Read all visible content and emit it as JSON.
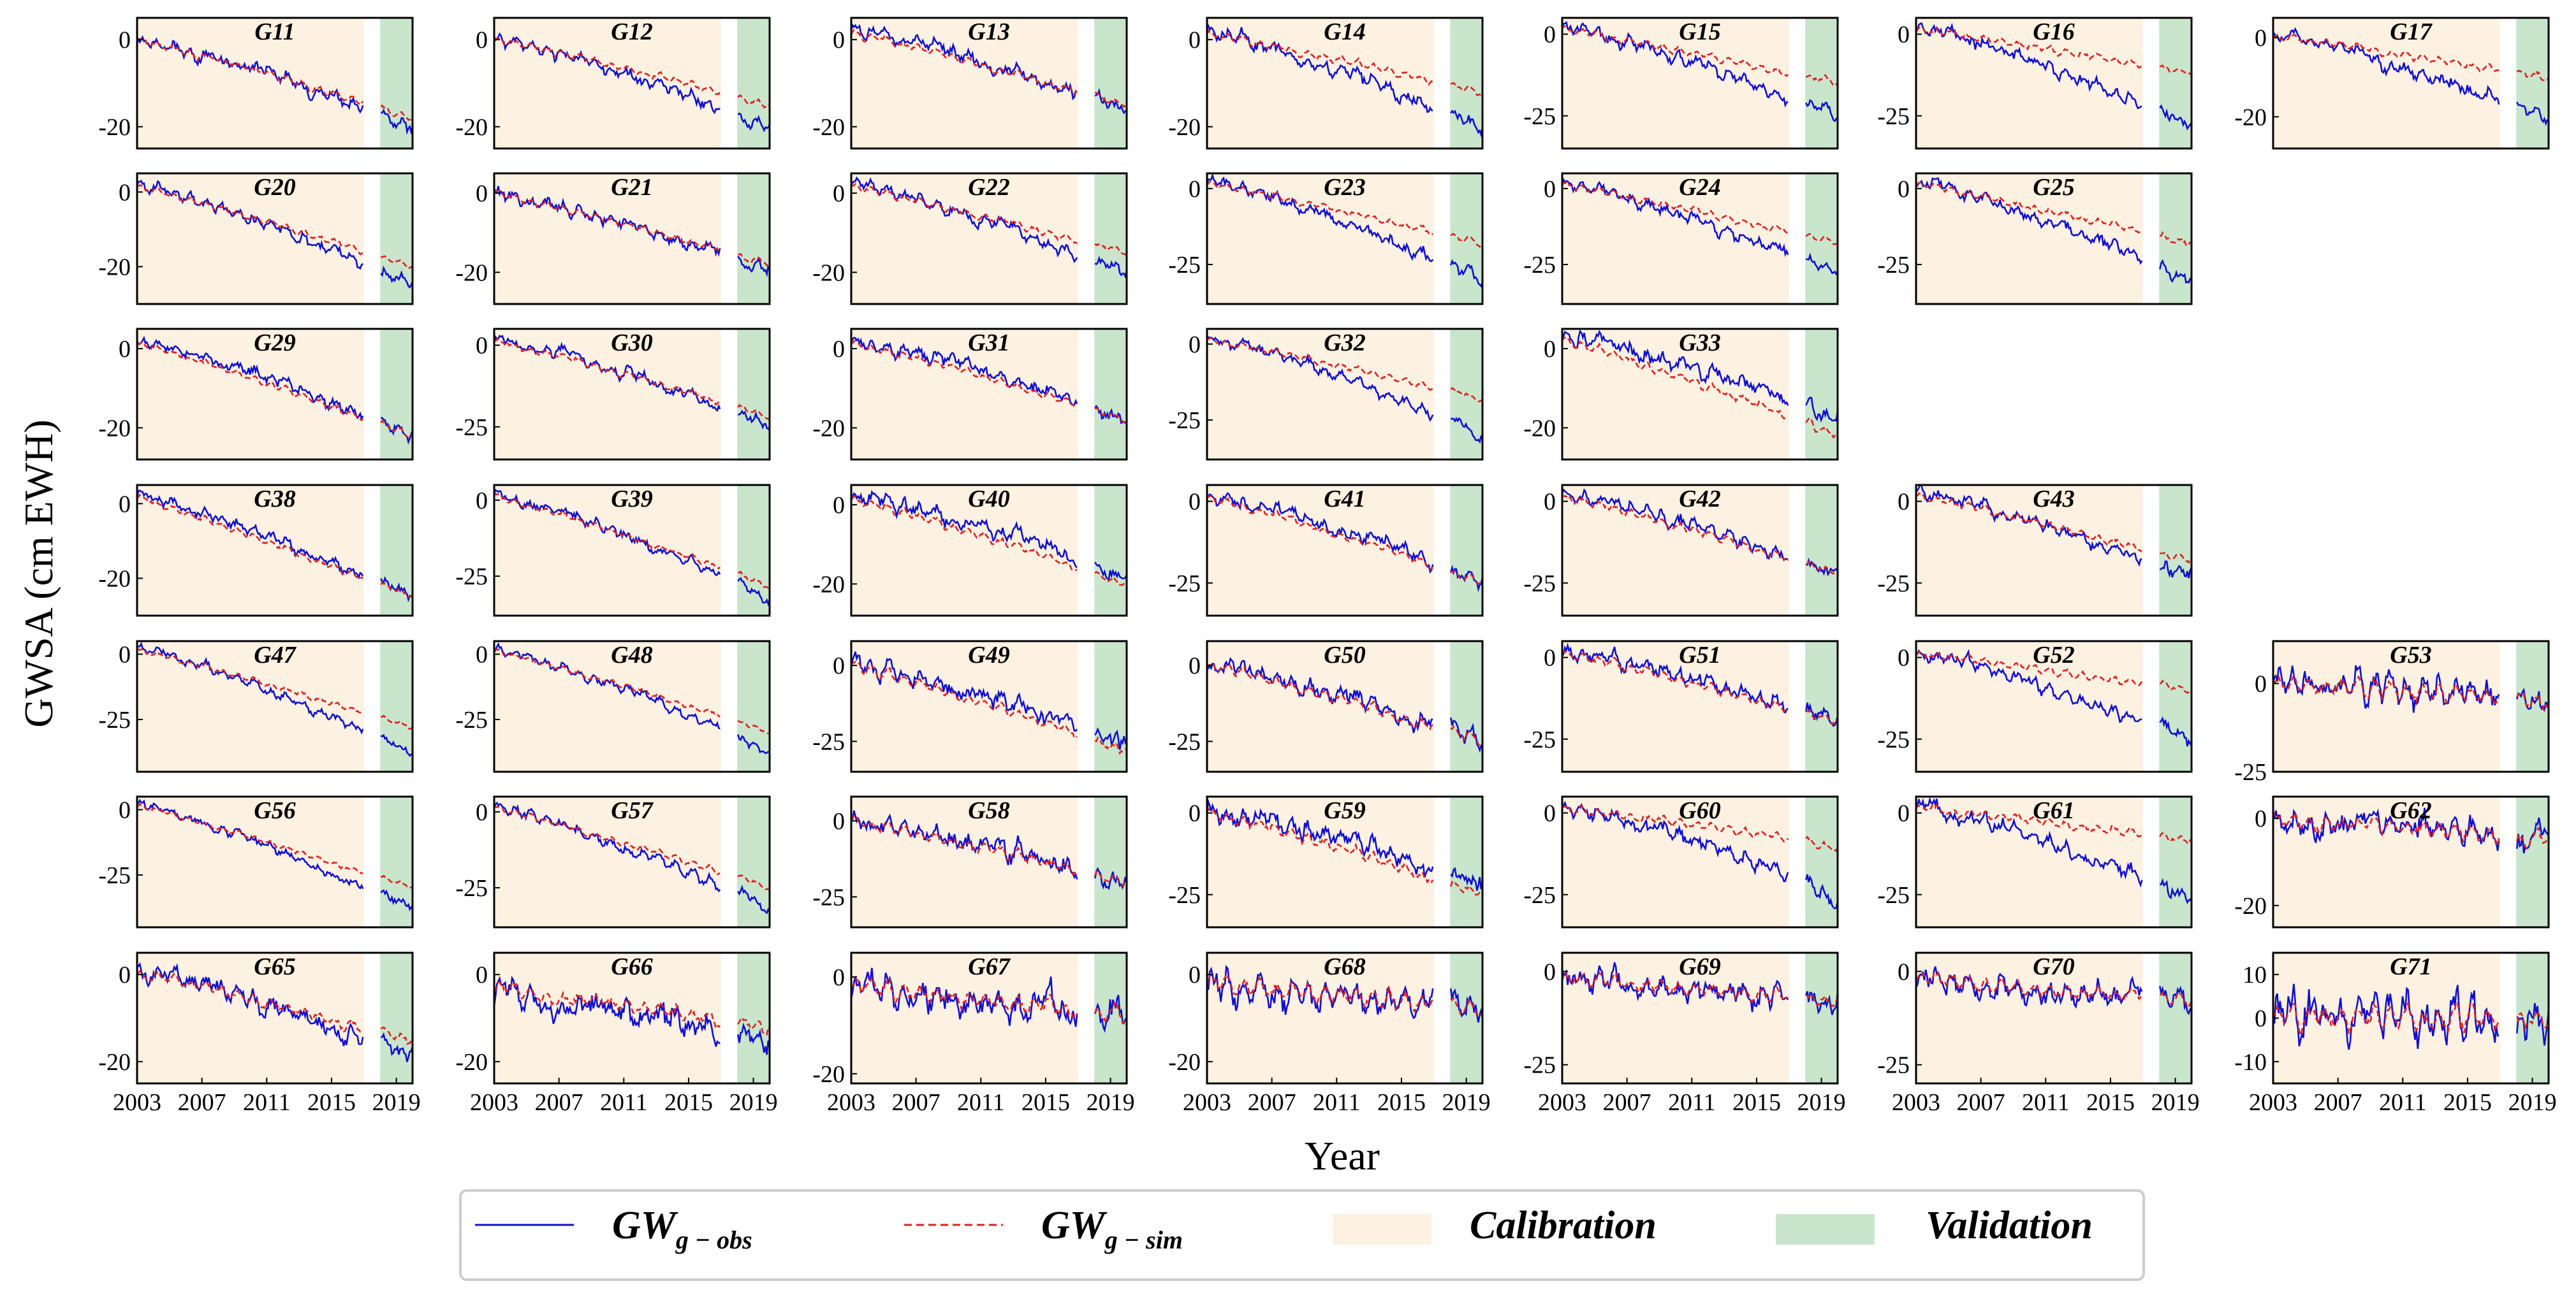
{
  "figure": {
    "ylabel": "GWSA (cm EWH)",
    "xlabel": "Year",
    "x_tick_labels": [
      "2003",
      "2007",
      "2011",
      "2015",
      "2019"
    ],
    "colors": {
      "obs": "#1010d0",
      "sim": "#e02020",
      "calibration": "#fdf1e1",
      "validation": "#c9e6cc"
    },
    "legend": {
      "obs_base": "GW",
      "obs_sub": "g − obs",
      "sim_base": "GW",
      "sim_sub": "g − sim",
      "calibration": "Calibration",
      "validation": "Validation"
    }
  },
  "chart_data": {
    "type": "line",
    "x_range": [
      2003,
      2020
    ],
    "calibration_period": [
      2003,
      2017
    ],
    "validation_period": [
      2018,
      2020
    ],
    "panels": [
      {
        "name": "G11",
        "ylim": [
          -25,
          5
        ],
        "yticks": [
          0,
          -20
        ],
        "start": 0,
        "end": -20,
        "sim_end": -18,
        "noise": 1.4
      },
      {
        "name": "G12",
        "ylim": [
          -25,
          5
        ],
        "yticks": [
          0,
          -20
        ],
        "start": 0,
        "end": -20,
        "sim_end": -15,
        "noise": 1.4
      },
      {
        "name": "G13",
        "ylim": [
          -25,
          5
        ],
        "yticks": [
          0,
          -20
        ],
        "start": 2,
        "end": -16,
        "sim_end": -15,
        "noise": 1.5
      },
      {
        "name": "G14",
        "ylim": [
          -25,
          5
        ],
        "yticks": [
          0,
          -20
        ],
        "start": 2,
        "end": -20,
        "sim_end": -12,
        "noise": 1.5
      },
      {
        "name": "G15",
        "ylim": [
          -35,
          5
        ],
        "yticks": [
          0,
          -25
        ],
        "start": 2,
        "end": -25,
        "sim_end": -15,
        "noise": 1.8
      },
      {
        "name": "G16",
        "ylim": [
          -35,
          5
        ],
        "yticks": [
          0,
          -25
        ],
        "start": 2,
        "end": -28,
        "sim_end": -12,
        "noise": 1.8
      },
      {
        "name": "G17",
        "ylim": [
          -28,
          5
        ],
        "yticks": [
          0,
          -20
        ],
        "start": 0,
        "end": -20,
        "sim_end": -10,
        "noise": 1.6
      },
      {
        "name": "G20",
        "ylim": [
          -30,
          5
        ],
        "yticks": [
          0,
          -20
        ],
        "start": 2,
        "end": -25,
        "sim_end": -20,
        "noise": 1.4
      },
      {
        "name": "G21",
        "ylim": [
          -28,
          5
        ],
        "yticks": [
          0,
          -20
        ],
        "start": 0,
        "end": -20,
        "sim_end": -18,
        "noise": 1.4
      },
      {
        "name": "G22",
        "ylim": [
          -28,
          5
        ],
        "yticks": [
          0,
          -20
        ],
        "start": 2,
        "end": -20,
        "sim_end": -15,
        "noise": 1.5
      },
      {
        "name": "G23",
        "ylim": [
          -38,
          5
        ],
        "yticks": [
          0,
          -25
        ],
        "start": 2,
        "end": -30,
        "sim_end": -18,
        "noise": 1.8
      },
      {
        "name": "G24",
        "ylim": [
          -38,
          5
        ],
        "yticks": [
          0,
          -25
        ],
        "start": 2,
        "end": -28,
        "sim_end": -18,
        "noise": 1.9
      },
      {
        "name": "G25",
        "ylim": [
          -38,
          5
        ],
        "yticks": [
          0,
          -25
        ],
        "start": 2,
        "end": -30,
        "sim_end": -18,
        "noise": 1.9
      },
      {
        "name": "G29",
        "ylim": [
          -28,
          5
        ],
        "yticks": [
          0,
          -20
        ],
        "start": 2,
        "end": -22,
        "sim_end": -22,
        "noise": 1.5
      },
      {
        "name": "G30",
        "ylim": [
          -35,
          5
        ],
        "yticks": [
          0,
          -25
        ],
        "start": 2,
        "end": -25,
        "sim_end": -22,
        "noise": 1.6
      },
      {
        "name": "G31",
        "ylim": [
          -28,
          5
        ],
        "yticks": [
          0,
          -20
        ],
        "start": 2,
        "end": -18,
        "sim_end": -18,
        "noise": 1.5
      },
      {
        "name": "G32",
        "ylim": [
          -38,
          5
        ],
        "yticks": [
          0,
          -25
        ],
        "start": 2,
        "end": -30,
        "sim_end": -18,
        "noise": 1.8
      },
      {
        "name": "G33",
        "ylim": [
          -28,
          5
        ],
        "yticks": [
          0,
          -20
        ],
        "start": 3,
        "end": -18,
        "sim_end": -22,
        "noise": 2.0
      },
      {
        "name": "G38",
        "ylim": [
          -30,
          5
        ],
        "yticks": [
          0,
          -20
        ],
        "start": 2,
        "end": -25,
        "sim_end": -25,
        "noise": 1.4
      },
      {
        "name": "G39",
        "ylim": [
          -38,
          5
        ],
        "yticks": [
          0,
          -25
        ],
        "start": 2,
        "end": -32,
        "sim_end": -28,
        "noise": 1.5
      },
      {
        "name": "G40",
        "ylim": [
          -28,
          5
        ],
        "yticks": [
          0,
          -20
        ],
        "start": 2,
        "end": -18,
        "sim_end": -20,
        "noise": 1.8
      },
      {
        "name": "G41",
        "ylim": [
          -35,
          5
        ],
        "yticks": [
          0,
          -25
        ],
        "start": 2,
        "end": -25,
        "sim_end": -25,
        "noise": 1.9
      },
      {
        "name": "G42",
        "ylim": [
          -35,
          5
        ],
        "yticks": [
          0,
          -25
        ],
        "start": 2,
        "end": -22,
        "sim_end": -22,
        "noise": 2.0
      },
      {
        "name": "G43",
        "ylim": [
          -35,
          5
        ],
        "yticks": [
          0,
          -25
        ],
        "start": 2,
        "end": -22,
        "sim_end": -18,
        "noise": 2.0
      },
      {
        "name": "G47",
        "ylim": [
          -45,
          5
        ],
        "yticks": [
          0,
          -25
        ],
        "start": 2,
        "end": -38,
        "sim_end": -28,
        "noise": 1.6
      },
      {
        "name": "G48",
        "ylim": [
          -45,
          5
        ],
        "yticks": [
          0,
          -25
        ],
        "start": 2,
        "end": -38,
        "sim_end": -30,
        "noise": 1.6
      },
      {
        "name": "G49",
        "ylim": [
          -35,
          8
        ],
        "yticks": [
          0,
          -25
        ],
        "start": 0,
        "end": -25,
        "sim_end": -28,
        "noise": 2.8
      },
      {
        "name": "G50",
        "ylim": [
          -35,
          8
        ],
        "yticks": [
          0,
          -25
        ],
        "start": 0,
        "end": -25,
        "sim_end": -25,
        "noise": 2.8
      },
      {
        "name": "G51",
        "ylim": [
          -35,
          5
        ],
        "yticks": [
          0,
          -25
        ],
        "start": 2,
        "end": -20,
        "sim_end": -20,
        "noise": 2.3
      },
      {
        "name": "G52",
        "ylim": [
          -35,
          5
        ],
        "yticks": [
          0,
          -25
        ],
        "start": 2,
        "end": -25,
        "sim_end": -10,
        "noise": 2.0
      },
      {
        "name": "G53",
        "ylim": [
          -25,
          12
        ],
        "yticks": [
          0,
          -25
        ],
        "start": 0,
        "end": -5,
        "sim_end": -5,
        "noise": 4.0
      },
      {
        "name": "G56",
        "ylim": [
          -45,
          5
        ],
        "yticks": [
          0,
          -25
        ],
        "start": 2,
        "end": -38,
        "sim_end": -30,
        "noise": 1.6
      },
      {
        "name": "G57",
        "ylim": [
          -38,
          5
        ],
        "yticks": [
          0,
          -25
        ],
        "start": 2,
        "end": -32,
        "sim_end": -25,
        "noise": 1.6
      },
      {
        "name": "G58",
        "ylim": [
          -35,
          8
        ],
        "yticks": [
          0,
          -25
        ],
        "start": 0,
        "end": -20,
        "sim_end": -20,
        "noise": 3.0
      },
      {
        "name": "G59",
        "ylim": [
          -35,
          5
        ],
        "yticks": [
          0,
          -25
        ],
        "start": 0,
        "end": -22,
        "sim_end": -25,
        "noise": 3.0
      },
      {
        "name": "G60",
        "ylim": [
          -35,
          5
        ],
        "yticks": [
          0,
          -25
        ],
        "start": 2,
        "end": -25,
        "sim_end": -10,
        "noise": 2.3
      },
      {
        "name": "G61",
        "ylim": [
          -35,
          5
        ],
        "yticks": [
          0,
          -25
        ],
        "start": 2,
        "end": -25,
        "sim_end": -8,
        "noise": 2.3
      },
      {
        "name": "G62",
        "ylim": [
          -25,
          5
        ],
        "yticks": [
          0,
          -20
        ],
        "start": 0,
        "end": -5,
        "sim_end": -5,
        "noise": 3.0
      },
      {
        "name": "G65",
        "ylim": [
          -25,
          5
        ],
        "yticks": [
          0,
          -20
        ],
        "start": 0,
        "end": -18,
        "sim_end": -15,
        "noise": 2.2
      },
      {
        "name": "G66",
        "ylim": [
          -25,
          5
        ],
        "yticks": [
          0,
          -20
        ],
        "start": -5,
        "end": -15,
        "sim_end": -12,
        "noise": 2.8
      },
      {
        "name": "G67",
        "ylim": [
          -22,
          5
        ],
        "yticks": [
          0,
          -20
        ],
        "start": -3,
        "end": -8,
        "sim_end": -8,
        "noise": 3.3
      },
      {
        "name": "G68",
        "ylim": [
          -25,
          5
        ],
        "yticks": [
          0,
          -20
        ],
        "start": -3,
        "end": -8,
        "sim_end": -8,
        "noise": 3.3
      },
      {
        "name": "G69",
        "ylim": [
          -30,
          5
        ],
        "yticks": [
          0,
          -25
        ],
        "start": -3,
        "end": -8,
        "sim_end": -8,
        "noise": 3.0
      },
      {
        "name": "G70",
        "ylim": [
          -30,
          5
        ],
        "yticks": [
          0,
          -25
        ],
        "start": -3,
        "end": -8,
        "sim_end": -8,
        "noise": 3.0
      },
      {
        "name": "G71",
        "ylim": [
          -15,
          15
        ],
        "yticks": [
          10,
          0,
          -10
        ],
        "start": 0,
        "end": 0,
        "sim_end": 0,
        "noise": 5.0
      }
    ]
  }
}
